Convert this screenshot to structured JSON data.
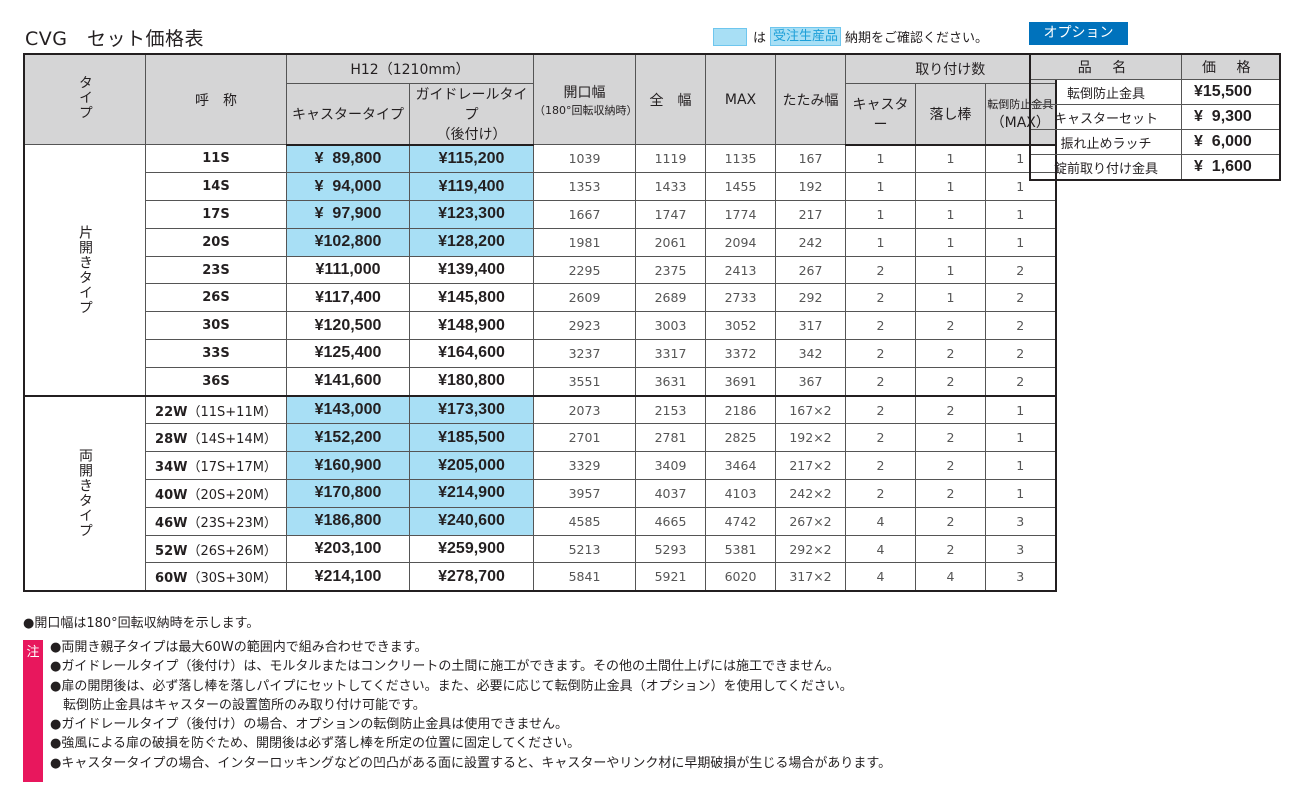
{
  "title": "CVG　セット価格表",
  "legend": {
    "prefix": "は",
    "tag": "受注生産品",
    "suffix": "納期をご確認ください。"
  },
  "headers": {
    "type": "タイプ",
    "name": "呼　称",
    "height_group": "H12（1210mm）",
    "caster_type": "キャスタータイプ",
    "guide_rail_type": "ガイドレールタイプ",
    "guide_rail_sub": "（後付け）",
    "opening": "開口幅",
    "opening_sub": "（180°回転収納時）",
    "total_width": "全　幅",
    "max": "MAX",
    "folded_width": "たたみ幅",
    "mount_group": "取り付け数",
    "caster": "キャスター",
    "drop_rod": "落し棒",
    "anti_tip": "転倒防止金具",
    "anti_tip_sub": "（MAX）"
  },
  "groups": [
    {
      "type_label": "片開きタイプ",
      "rows": [
        {
          "name": "11S",
          "sub": "",
          "caster_price": "¥  89,800",
          "rail_price": "¥115,200",
          "opening": "1039",
          "width": "1119",
          "max": "1135",
          "folded": "167",
          "caster": "1",
          "rod": "1",
          "anti": "1",
          "highlight": true
        },
        {
          "name": "14S",
          "sub": "",
          "caster_price": "¥  94,000",
          "rail_price": "¥119,400",
          "opening": "1353",
          "width": "1433",
          "max": "1455",
          "folded": "192",
          "caster": "1",
          "rod": "1",
          "anti": "1",
          "highlight": true
        },
        {
          "name": "17S",
          "sub": "",
          "caster_price": "¥  97,900",
          "rail_price": "¥123,300",
          "opening": "1667",
          "width": "1747",
          "max": "1774",
          "folded": "217",
          "caster": "1",
          "rod": "1",
          "anti": "1",
          "highlight": true
        },
        {
          "name": "20S",
          "sub": "",
          "caster_price": "¥102,800",
          "rail_price": "¥128,200",
          "opening": "1981",
          "width": "2061",
          "max": "2094",
          "folded": "242",
          "caster": "1",
          "rod": "1",
          "anti": "1",
          "highlight": true
        },
        {
          "name": "23S",
          "sub": "",
          "caster_price": "¥111,000",
          "rail_price": "¥139,400",
          "opening": "2295",
          "width": "2375",
          "max": "2413",
          "folded": "267",
          "caster": "2",
          "rod": "1",
          "anti": "2",
          "highlight": false
        },
        {
          "name": "26S",
          "sub": "",
          "caster_price": "¥117,400",
          "rail_price": "¥145,800",
          "opening": "2609",
          "width": "2689",
          "max": "2733",
          "folded": "292",
          "caster": "2",
          "rod": "1",
          "anti": "2",
          "highlight": false
        },
        {
          "name": "30S",
          "sub": "",
          "caster_price": "¥120,500",
          "rail_price": "¥148,900",
          "opening": "2923",
          "width": "3003",
          "max": "3052",
          "folded": "317",
          "caster": "2",
          "rod": "2",
          "anti": "2",
          "highlight": false
        },
        {
          "name": "33S",
          "sub": "",
          "caster_price": "¥125,400",
          "rail_price": "¥164,600",
          "opening": "3237",
          "width": "3317",
          "max": "3372",
          "folded": "342",
          "caster": "2",
          "rod": "2",
          "anti": "2",
          "highlight": false
        },
        {
          "name": "36S",
          "sub": "",
          "caster_price": "¥141,600",
          "rail_price": "¥180,800",
          "opening": "3551",
          "width": "3631",
          "max": "3691",
          "folded": "367",
          "caster": "2",
          "rod": "2",
          "anti": "2",
          "highlight": false
        }
      ]
    },
    {
      "type_label": "両開きタイプ",
      "rows": [
        {
          "name": "22W",
          "sub": "（11S+11M）",
          "caster_price": "¥143,000",
          "rail_price": "¥173,300",
          "opening": "2073",
          "width": "2153",
          "max": "2186",
          "folded": "167×2",
          "caster": "2",
          "rod": "2",
          "anti": "1",
          "highlight": true
        },
        {
          "name": "28W",
          "sub": "（14S+14M）",
          "caster_price": "¥152,200",
          "rail_price": "¥185,500",
          "opening": "2701",
          "width": "2781",
          "max": "2825",
          "folded": "192×2",
          "caster": "2",
          "rod": "2",
          "anti": "1",
          "highlight": true
        },
        {
          "name": "34W",
          "sub": "（17S+17M）",
          "caster_price": "¥160,900",
          "rail_price": "¥205,000",
          "opening": "3329",
          "width": "3409",
          "max": "3464",
          "folded": "217×2",
          "caster": "2",
          "rod": "2",
          "anti": "1",
          "highlight": true
        },
        {
          "name": "40W",
          "sub": "（20S+20M）",
          "caster_price": "¥170,800",
          "rail_price": "¥214,900",
          "opening": "3957",
          "width": "4037",
          "max": "4103",
          "folded": "242×2",
          "caster": "2",
          "rod": "2",
          "anti": "1",
          "highlight": true
        },
        {
          "name": "46W",
          "sub": "（23S+23M）",
          "caster_price": "¥186,800",
          "rail_price": "¥240,600",
          "opening": "4585",
          "width": "4665",
          "max": "4742",
          "folded": "267×2",
          "caster": "4",
          "rod": "2",
          "anti": "3",
          "highlight": true
        },
        {
          "name": "52W",
          "sub": "（26S+26M）",
          "caster_price": "¥203,100",
          "rail_price": "¥259,900",
          "opening": "5213",
          "width": "5293",
          "max": "5381",
          "folded": "292×2",
          "caster": "4",
          "rod": "2",
          "anti": "3",
          "highlight": false
        },
        {
          "name": "60W",
          "sub": "（30S+30M）",
          "caster_price": "¥214,100",
          "rail_price": "¥278,700",
          "opening": "5841",
          "width": "5921",
          "max": "6020",
          "folded": "317×2",
          "caster": "4",
          "rod": "4",
          "anti": "3",
          "highlight": false
        }
      ]
    }
  ],
  "options": {
    "heading": "オプション",
    "col_name": "品 名",
    "col_price": "価 格",
    "items": [
      {
        "name": "転倒防止金具",
        "price": "¥15,500"
      },
      {
        "name": "キャスターセット",
        "price": "¥  9,300"
      },
      {
        "name": "振れ止めラッチ",
        "price": "¥  6,000"
      },
      {
        "name": "錠前取り付け金具",
        "price": "¥  1,600"
      }
    ]
  },
  "note_opening": "●開口幅は180°回転収納時を示します。",
  "caution_label": "注",
  "cautions": [
    "●両開き親子タイプは最大60Wの範囲内で組み合わせできます。",
    "●ガイドレールタイプ（後付け）は、モルタルまたはコンクリートの土間に施工ができます。その他の土間仕上げには施工できません。",
    "●扉の開閉後は、必ず落し棒を落しパイプにセットしてください。また、必要に応じて転倒防止金具（オプション）を使用してください。",
    "　転倒防止金具はキャスターの設置箇所のみ取り付け可能です。",
    "●ガイドレールタイプ（後付け）の場合、オプションの転倒防止金具は使用できません。",
    "●強風による扉の破損を防ぐため、開閉後は必ず落し棒を所定の位置に固定してください。",
    "●キャスタータイプの場合、インターロッキングなどの凹凸がある面に設置すると、キャスターやリンク材に早期破損が生じる場合があります。"
  ],
  "colors": {
    "highlight": "#a8dff5",
    "header_bg": "#d5d5d6",
    "option_heading": "#0072bc",
    "caution": "#e8175d"
  }
}
